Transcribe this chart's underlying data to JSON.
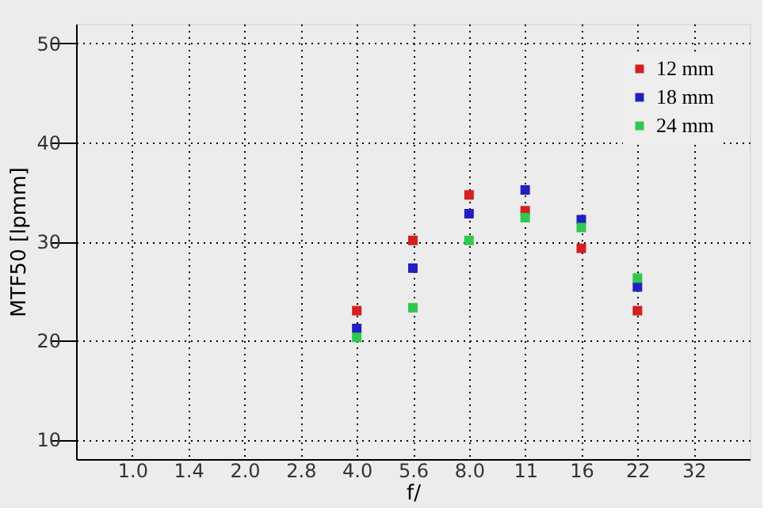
{
  "chart_data": {
    "type": "scatter",
    "xlabel": "f/",
    "ylabel": "MTF50 [lpmm]",
    "categories": [
      "1.0",
      "1.4",
      "2.0",
      "2.8",
      "4.0",
      "5.6",
      "8.0",
      "11",
      "16",
      "22",
      "32"
    ],
    "series": [
      {
        "name": "12 mm",
        "color": "#d42020",
        "values": [
          null,
          null,
          null,
          null,
          23.0,
          30.1,
          34.7,
          33.1,
          29.3,
          23.0,
          null
        ]
      },
      {
        "name": "18 mm",
        "color": "#2020c0",
        "values": [
          null,
          null,
          null,
          null,
          21.2,
          27.3,
          32.8,
          35.2,
          32.2,
          25.4,
          null
        ]
      },
      {
        "name": "24 mm",
        "color": "#30c850",
        "values": [
          null,
          null,
          null,
          null,
          20.3,
          23.3,
          30.1,
          32.4,
          31.4,
          26.3,
          null
        ]
      }
    ],
    "ylim": [
      8,
      52
    ],
    "yticks": [
      10,
      20,
      30,
      40,
      50
    ],
    "grid": true,
    "legend": "top right",
    "marker": "square"
  }
}
